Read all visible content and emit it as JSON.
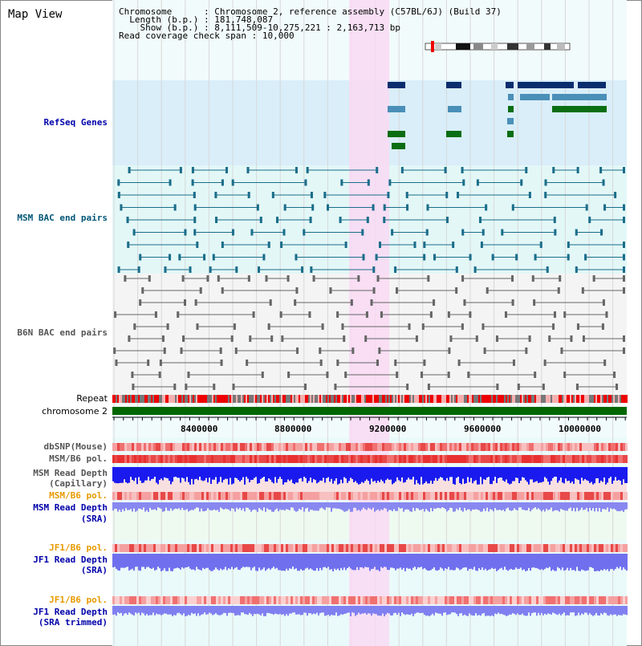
{
  "page": {
    "title": "Map View"
  },
  "info": {
    "chromosome_label": "Chromosome",
    "chromosome_value": "Chromosome 2, reference assembly (C57BL/6J) (Build 37)",
    "length_label": "Length (b.p.)",
    "length_value": "181,748,087",
    "show_label": "Show (b.p.)",
    "show_value": "8,111,509-10,275,221 : 2,163,713 bp",
    "coverage_label": "Read coverage check span",
    "coverage_value": "10,000"
  },
  "tracks": {
    "refseq": "RefSeq Genes",
    "msm_bac": "MSM BAC end pairs",
    "b6n_bac": "B6N BAC end pairs",
    "repeat": "Repeat",
    "chromosome": "chromosome 2",
    "dbsnp": "dbSNP(Mouse)",
    "msm_b6_pol_1": "MSM/B6 pol.",
    "msm_depth_cap_1": "MSM Read Depth",
    "msm_depth_cap_2": "(Capillary)",
    "msm_b6_pol_2": "MSM/B6 pol.",
    "msm_depth_sra_1": "MSM Read Depth",
    "msm_depth_sra_2": "(SRA)",
    "jf1_b6_pol_1": "JF1/B6 pol.",
    "jf1_depth_sra_1": "JF1 Read Depth",
    "jf1_depth_sra_2": "(SRA)",
    "jf1_b6_pol_2": "JF1/B6 pol.",
    "jf1_depth_trim_1": "JF1 Read Depth",
    "jf1_depth_trim_2": "(SRA trimmed)"
  },
  "axis": {
    "ticks": [
      "8400000",
      "8800000",
      "9200000",
      "9600000",
      "10000000"
    ]
  },
  "colors": {
    "refseq_bg": "#d9eef9",
    "msm_bg": "#e3f7f7",
    "highlight": "#f9d9f3",
    "msm_feature": "#1a6d8a",
    "b6n_feature": "#666666",
    "gene_navy": "#0a2d6e",
    "gene_steel": "#4a8fb8",
    "gene_green": "#0a6e12",
    "label_blue": "#0000aa",
    "label_teal": "#005577",
    "label_orange": "#e89a00"
  }
}
